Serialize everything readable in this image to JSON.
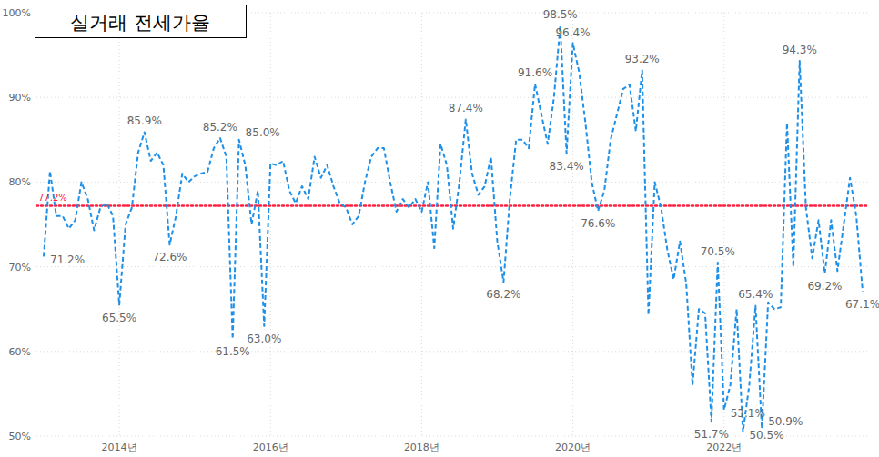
{
  "chart_data": {
    "type": "line",
    "title": "실거래 전세가율",
    "categories": [
      null,
      null,
      null,
      null,
      null,
      null,
      null,
      null,
      null,
      null,
      null,
      null,
      "2014년",
      null,
      null,
      null,
      null,
      null,
      null,
      null,
      null,
      null,
      null,
      null,
      null,
      null,
      null,
      null,
      null,
      null,
      null,
      null,
      null,
      null,
      null,
      null,
      "2016년",
      null,
      null,
      null,
      null,
      null,
      null,
      null,
      null,
      null,
      null,
      null,
      null,
      null,
      null,
      null,
      null,
      null,
      null,
      null,
      null,
      null,
      null,
      null,
      "2018년",
      null,
      null,
      null,
      null,
      null,
      null,
      null,
      null,
      null,
      null,
      null,
      null,
      null,
      null,
      null,
      null,
      null,
      null,
      null,
      null,
      null,
      null,
      null,
      "2020년",
      null,
      null,
      null,
      null,
      null,
      null,
      null,
      null,
      null,
      null,
      null,
      null,
      null,
      null,
      null,
      null,
      null,
      null,
      null,
      null,
      null,
      null,
      null,
      "2022년",
      null,
      null,
      null,
      null,
      null,
      null,
      null,
      null,
      null,
      null,
      null,
      null,
      null,
      null,
      null,
      null,
      null,
      null,
      null,
      null,
      null,
      null
    ],
    "values": [
      71.2,
      81.3,
      76,
      76,
      74.5,
      75.5,
      80,
      78,
      74.3,
      77,
      77.5,
      76,
      65.5,
      75,
      77,
      83.5,
      85.9,
      82.5,
      83.5,
      82,
      72.6,
      76,
      81,
      80,
      80.7,
      81,
      81.2,
      84,
      85.2,
      83,
      61.5,
      85.0,
      82,
      75,
      79,
      63.0,
      82.2,
      82,
      82.5,
      79,
      77.5,
      79.5,
      78,
      83,
      80.5,
      82,
      79.5,
      77.5,
      77,
      75,
      76,
      80,
      83,
      84,
      84,
      80,
      76.5,
      78,
      77,
      78,
      76.5,
      80,
      72.2,
      84.5,
      82,
      74.5,
      80,
      87.4,
      81,
      78.5,
      79.5,
      83,
      73,
      68.2,
      78,
      85,
      85,
      84,
      91.6,
      88,
      84.5,
      90,
      98.5,
      83.4,
      96.4,
      93,
      87,
      80,
      76.6,
      79,
      85,
      88,
      91,
      91.5,
      86,
      93.2,
      64.3,
      80,
      77,
      72,
      68.5,
      73,
      68,
      56,
      65,
      64.5,
      51.7,
      70.5,
      53.1,
      56,
      65,
      50.5,
      56,
      65.4,
      50.9,
      65.8,
      65,
      65.2,
      87,
      70,
      94.3,
      77,
      71,
      75.5,
      69.2,
      75.5,
      69.5,
      75,
      80.5,
      76,
      67.1
    ],
    "value_labels": [
      "71.2%",
      null,
      null,
      null,
      null,
      null,
      null,
      null,
      null,
      null,
      null,
      null,
      "65.5%",
      null,
      null,
      null,
      "85.9%",
      null,
      null,
      null,
      "72.6%",
      null,
      null,
      null,
      null,
      null,
      null,
      null,
      "85.2%",
      null,
      "61.5%",
      "85.0%",
      null,
      null,
      null,
      "63.0%",
      null,
      null,
      null,
      null,
      null,
      null,
      null,
      null,
      null,
      null,
      null,
      null,
      null,
      null,
      null,
      null,
      null,
      null,
      null,
      null,
      null,
      null,
      null,
      null,
      null,
      null,
      null,
      null,
      null,
      null,
      null,
      "87.4%",
      null,
      null,
      null,
      null,
      null,
      "68.2%",
      null,
      null,
      null,
      null,
      "91.6%",
      null,
      null,
      null,
      "98.5%",
      "83.4%",
      "96.4%",
      null,
      null,
      null,
      "76.6%",
      null,
      null,
      null,
      null,
      null,
      null,
      "93.2%",
      null,
      null,
      null,
      null,
      null,
      null,
      null,
      null,
      null,
      null,
      "51.7%",
      "70.5%",
      "53.1%",
      null,
      null,
      "50.5%",
      null,
      "65.4%",
      "50.9%",
      null,
      null,
      null,
      null,
      null,
      "94.3%",
      null,
      null,
      null,
      "69.2%",
      null,
      null,
      null,
      null,
      null,
      "67.1%"
    ],
    "color": "#1e90e8",
    "line_style": "dashed",
    "data_labels": true,
    "grid": true,
    "ylim": [
      50,
      100
    ],
    "yticks": [
      {
        "value": 50,
        "label": "50%"
      },
      {
        "value": 60,
        "label": "60%"
      },
      {
        "value": 70,
        "label": "70%"
      },
      {
        "value": 80,
        "label": "80%"
      },
      {
        "value": 90,
        "label": "90%"
      },
      {
        "value": 100,
        "label": "100%"
      }
    ],
    "annotations": [
      {
        "value": 77.2,
        "label": "77.2%",
        "color": "#ff2040",
        "line_style": "dotted"
      }
    ]
  }
}
